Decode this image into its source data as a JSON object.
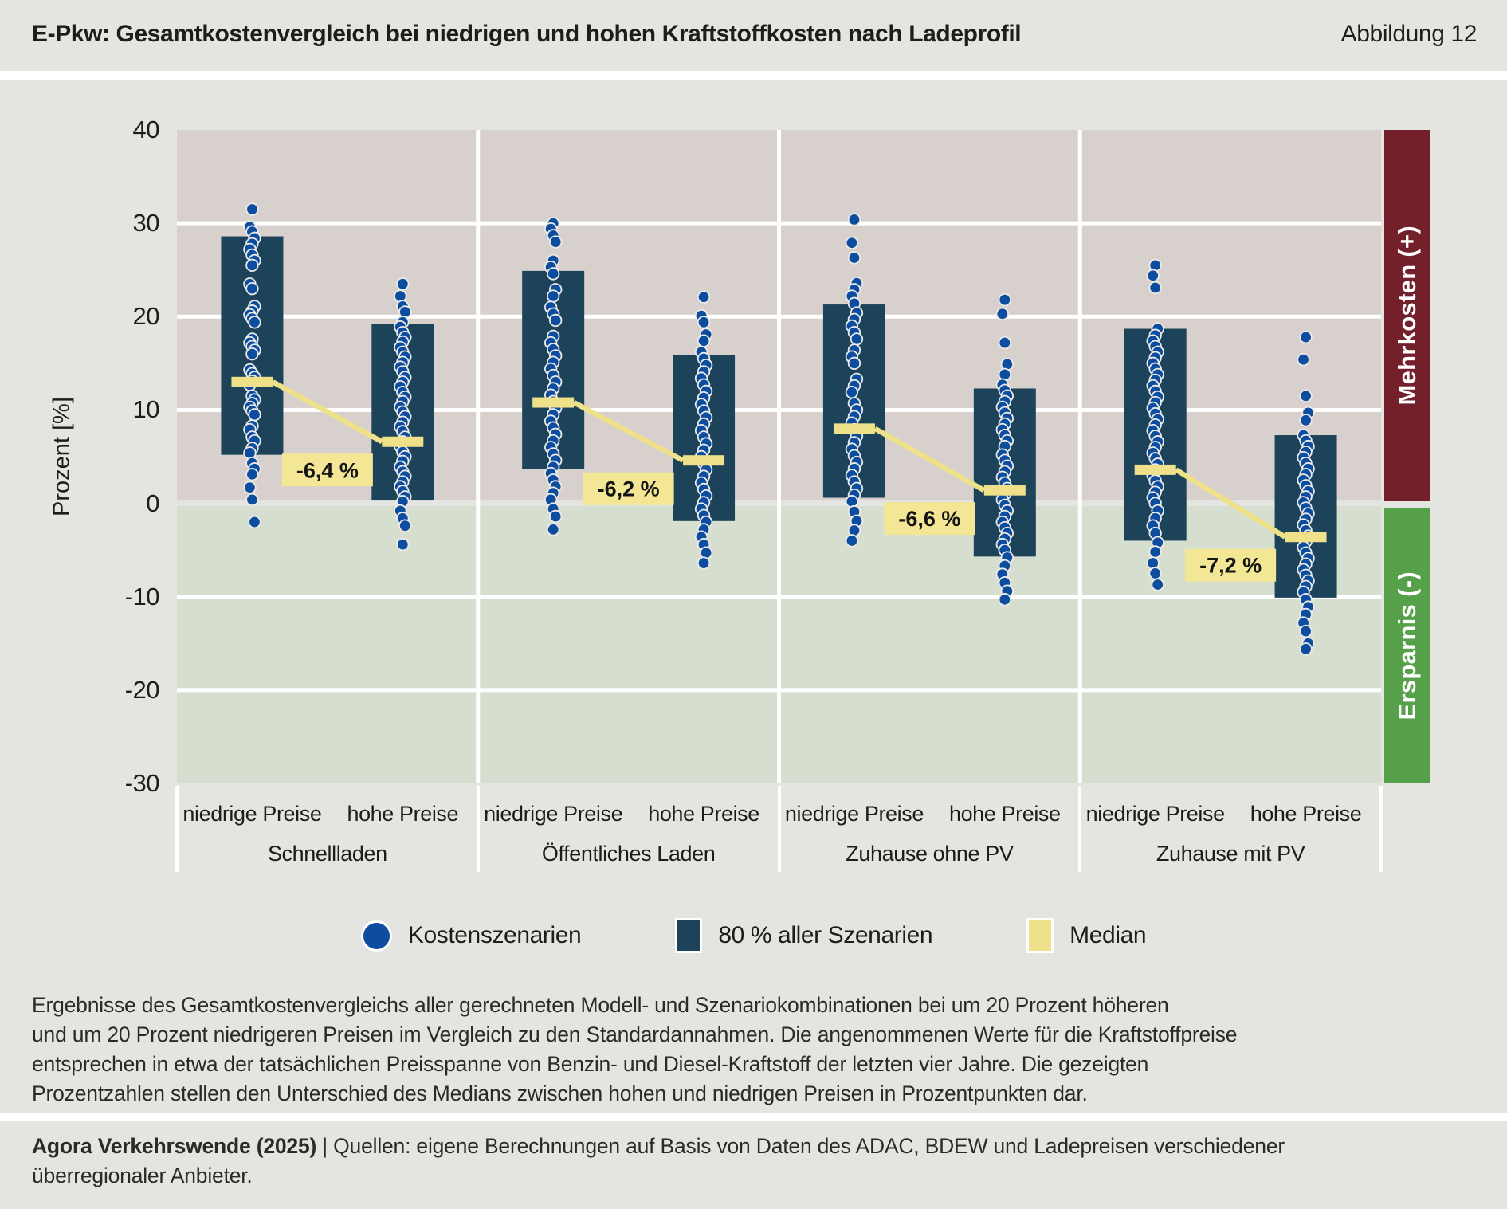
{
  "header": {
    "title": "E-Pkw: Gesamtkostenvergleich bei niedrigen und hohen Kraftstoffkosten nach Ladeprofil",
    "figure_label": "Abbildung 12"
  },
  "y_axis": {
    "title": "Prozent [%]",
    "ticks": [
      40,
      30,
      20,
      10,
      0,
      -10,
      -20,
      -30
    ]
  },
  "side_bands": {
    "positive_label": "Mehrkosten (+)",
    "negative_label": "Ersparnis (-)"
  },
  "legend": {
    "items": [
      {
        "marker": "dot",
        "label": "Kostenszenarien"
      },
      {
        "marker": "square-dark",
        "label": "80 % aller Szenarien"
      },
      {
        "marker": "square-yellow",
        "label": "Median"
      }
    ]
  },
  "colors": {
    "page_bg": "#e4e4e1",
    "bg_positive": "#d8d0cd",
    "bg_negative": "#d6decf",
    "bar": "#1c4359",
    "dot": "#0d4da0",
    "dot_stroke": "#eceae6",
    "median": "#eee18a",
    "label_box": "#f3e795",
    "band_positive": "#74202a",
    "band_negative": "#55a048",
    "gridline": "#ffffff",
    "text": "#1d1d1b"
  },
  "chart_data": {
    "type": "scatter",
    "note": "total-cost difference of e-cars vs combustion in percent; dots = cost scenarios, dark band = 10th-90th percentile, yellow = median",
    "ylim": [
      -30,
      40
    ],
    "yticks": [
      40,
      30,
      20,
      10,
      0,
      -10,
      -20,
      -30
    ],
    "ylabel": "Prozent [%]",
    "column_labels": [
      "niedrige Preise",
      "hohe Preise"
    ],
    "groups": [
      {
        "name": "Schnellladen",
        "median_diff_label": "-6,4 %",
        "columns": [
          {
            "label": "niedrige Preise",
            "band": [
              5.2,
              28.6
            ],
            "median": 13.0,
            "points": [
              31.5,
              29.6,
              29.1,
              28.4,
              27.8,
              27.2,
              26.6,
              26.0,
              25.5,
              23.5,
              23.0,
              21.1,
              20.6,
              20.2,
              19.8,
              19.4,
              17.6,
              17.2,
              16.8,
              16.4,
              16.0,
              14.3,
              13.9,
              13.5,
              13.1,
              12.7,
              11.5,
              11.1,
              10.7,
              10.3,
              9.9,
              9.5,
              8.3,
              7.9,
              7.1,
              6.7,
              5.9,
              5.4,
              4.3,
              3.7,
              3.1,
              1.7,
              0.4,
              -2.0
            ]
          },
          {
            "label": "hohe Preise",
            "band": [
              0.3,
              19.2
            ],
            "median": 6.6,
            "points": [
              23.5,
              22.2,
              21.1,
              20.5,
              19.4,
              18.9,
              18.3,
              17.8,
              17.3,
              16.7,
              16.2,
              15.7,
              15.1,
              14.6,
              14.1,
              13.5,
              13.0,
              12.5,
              11.9,
              11.4,
              10.9,
              10.3,
              9.8,
              9.3,
              8.7,
              8.2,
              7.7,
              7.1,
              6.6,
              6.1,
              5.5,
              5.0,
              4.5,
              3.9,
              3.4,
              2.9,
              2.3,
              1.8,
              1.3,
              0.7,
              0.2,
              -0.8,
              -1.6,
              -2.4,
              -4.4
            ]
          }
        ]
      },
      {
        "name": "Öffentliches Laden",
        "median_diff_label": "-6,2 %",
        "columns": [
          {
            "label": "niedrige Preise",
            "band": [
              3.7,
              24.9
            ],
            "median": 10.8,
            "points": [
              30.0,
              29.4,
              28.7,
              28.0,
              26.0,
              25.3,
              24.6,
              22.9,
              22.2,
              21.0,
              20.3,
              19.6,
              17.9,
              17.2,
              16.5,
              15.8,
              15.1,
              14.4,
              13.7,
              13.0,
              12.3,
              11.6,
              10.9,
              10.2,
              9.5,
              8.8,
              8.1,
              7.4,
              6.7,
              6.0,
              5.3,
              4.6,
              3.9,
              3.2,
              2.5,
              1.8,
              1.1,
              0.4,
              -0.6,
              -1.4,
              -2.8
            ]
          },
          {
            "label": "hohe Preise",
            "band": [
              -1.9,
              15.9
            ],
            "median": 4.6,
            "points": [
              22.1,
              20.1,
              19.4,
              18.1,
              17.4,
              16.2,
              15.5,
              14.8,
              14.1,
              13.4,
              12.7,
              12.0,
              11.3,
              10.6,
              9.9,
              9.2,
              8.5,
              7.8,
              7.1,
              6.4,
              5.7,
              5.0,
              4.3,
              3.6,
              2.9,
              2.2,
              1.5,
              0.8,
              0.1,
              -0.6,
              -1.3,
              -2.0,
              -2.8,
              -3.6,
              -4.4,
              -5.3,
              -6.4
            ]
          }
        ]
      },
      {
        "name": "Zuhause ohne PV",
        "median_diff_label": "-6,6 %",
        "columns": [
          {
            "label": "niedrige Preise",
            "band": [
              0.6,
              21.3
            ],
            "median": 8.0,
            "points": [
              30.4,
              27.9,
              26.3,
              23.6,
              22.9,
              22.2,
              21.4,
              20.4,
              19.7,
              19.0,
              18.3,
              17.6,
              16.4,
              15.7,
              15.0,
              13.3,
              12.6,
              11.9,
              10.7,
              10.0,
              9.3,
              8.6,
              7.9,
              7.2,
              6.5,
              5.8,
              5.1,
              4.4,
              3.7,
              3.0,
              2.3,
              1.6,
              0.9,
              0.2,
              -0.9,
              -1.9,
              -2.9,
              -4.0
            ]
          },
          {
            "label": "hohe Preise",
            "band": [
              -5.7,
              12.3
            ],
            "median": 1.4,
            "points": [
              21.8,
              20.3,
              17.2,
              14.9,
              13.8,
              12.7,
              12.1,
              11.5,
              10.9,
              10.3,
              9.7,
              9.1,
              8.5,
              7.9,
              7.3,
              6.7,
              6.1,
              5.2,
              4.6,
              4.0,
              3.4,
              2.8,
              2.2,
              1.6,
              1.0,
              0.4,
              -0.2,
              -0.8,
              -1.4,
              -2.0,
              -2.6,
              -3.2,
              -3.8,
              -4.4,
              -5.0,
              -5.8,
              -6.7,
              -7.6,
              -8.5,
              -9.4,
              -10.3
            ]
          }
        ]
      },
      {
        "name": "Zuhause mit PV",
        "median_diff_label": "-7,2 %",
        "columns": [
          {
            "label": "niedrige Preise",
            "band": [
              -4.0,
              18.7
            ],
            "median": 3.6,
            "points": [
              25.5,
              24.4,
              23.1,
              18.7,
              18.0,
              17.4,
              16.8,
              16.2,
              15.6,
              15.0,
              14.4,
              13.8,
              13.2,
              12.6,
              12.0,
              11.4,
              10.8,
              10.2,
              9.6,
              9.0,
              8.4,
              7.8,
              7.2,
              6.6,
              6.0,
              5.4,
              4.8,
              4.2,
              3.6,
              3.0,
              2.4,
              1.8,
              1.2,
              0.6,
              0.0,
              -0.8,
              -1.6,
              -2.4,
              -3.2,
              -4.2,
              -5.2,
              -6.4,
              -7.5,
              -8.7
            ]
          },
          {
            "label": "hohe Preise",
            "band": [
              -10.1,
              7.3
            ],
            "median": -3.6,
            "points": [
              17.8,
              15.4,
              11.5,
              9.7,
              8.9,
              7.3,
              6.7,
              6.1,
              5.5,
              4.9,
              4.3,
              3.7,
              3.1,
              2.5,
              1.9,
              1.3,
              0.7,
              0.1,
              -0.5,
              -1.1,
              -1.7,
              -2.3,
              -2.9,
              -3.5,
              -4.1,
              -4.7,
              -5.3,
              -5.9,
              -6.5,
              -7.1,
              -7.7,
              -8.3,
              -8.9,
              -9.5,
              -10.3,
              -11.1,
              -11.9,
              -12.8,
              -13.7,
              -15.0,
              -15.6
            ]
          }
        ]
      }
    ]
  },
  "footnote": {
    "text": "Ergebnisse des Gesamtkostenvergleichs aller gerechneten Modell- und Szenariokombinationen bei um 20 Prozent höheren\nund um 20 Prozent niedrigeren Preisen im Vergleich zu den Standardannahmen. Die angenommenen Werte für die Kraftstoffpreise\nentsprechen in etwa der tatsächlichen Preisspanne von Benzin- und Diesel-Kraftstoff der letzten vier Jahre. Die gezeigten\nProzentzahlen stellen den Unterschied des Medians zwischen hohen und niedrigen Preisen in Prozentpunkten dar."
  },
  "source": {
    "publisher": "Agora Verkehrswende (2025)",
    "line1_rest": " | Quellen: eigene Berechnungen auf Basis von Daten des ADAC, BDEW und Ladepreisen verschiedener",
    "line2": "überregionaler Anbieter."
  }
}
